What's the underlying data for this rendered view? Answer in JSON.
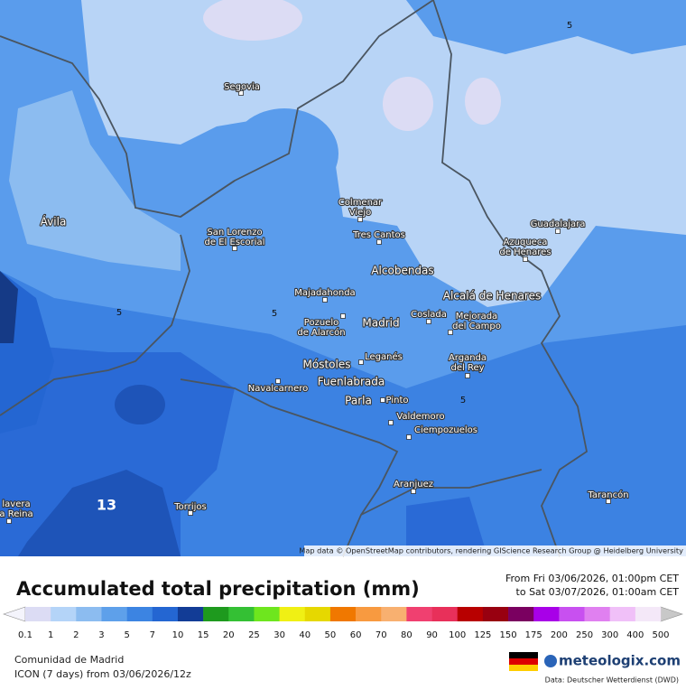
{
  "map": {
    "places": [
      [
        "Segovia"
      ],
      [
        "Ávila"
      ],
      [
        "Colmenar",
        "Viejo"
      ],
      [
        "San Lorenzo",
        "de El Escorial"
      ],
      [
        "Tres Cantos"
      ],
      [
        "Guadalajara"
      ],
      [
        "Azuqueca",
        "de Henares"
      ],
      [
        "Alcobendas"
      ],
      [
        "Majadahonda"
      ],
      [
        "Alcalá de Henares"
      ],
      [
        "Pozuelo",
        "de Alarcón"
      ],
      [
        "Madrid"
      ],
      [
        "Coslada"
      ],
      [
        "Mejorada",
        "del Campo"
      ],
      [
        "Leganés"
      ],
      [
        "Móstoles"
      ],
      [
        "Arganda",
        "del Rey"
      ],
      [
        "Navalcarnero"
      ],
      [
        "Fuenlabrada"
      ],
      [
        "Parla"
      ],
      [
        "Pinto"
      ],
      [
        "Valdemoro"
      ],
      [
        "Ciempozuelos"
      ],
      [
        "Aranjuez"
      ],
      [
        "Tarancón"
      ],
      [
        "Torrijos"
      ],
      [
        "lavera",
        "a Reina"
      ]
    ],
    "contour_labels": [
      5,
      5,
      5,
      5,
      13
    ],
    "attribution": "Map data © OpenStreetMap contributors, rendering GIScience Research Group @ Heidelberg University"
  },
  "legend": {
    "title": "Accumulated total precipitation (mm)",
    "period": [
      "From Fri 03/06/2026, 01:00pm CET",
      "to Sat 03/07/2026, 01:00am CET"
    ],
    "steps": [
      0.1,
      1,
      2,
      3,
      5,
      7,
      10,
      15,
      20,
      25,
      30,
      40,
      50,
      60,
      70,
      80,
      90,
      100,
      125,
      150,
      175,
      200,
      250,
      300,
      400,
      500
    ],
    "colors": [
      "#dcdcf4",
      "#b4d4f8",
      "#8cbcf0",
      "#5ea0ea",
      "#3c84e2",
      "#2466d2",
      "#123c96",
      "#1e9a1e",
      "#34c034",
      "#6ee61e",
      "#f0f014",
      "#e6d800",
      "#f07800",
      "#f89a40",
      "#f8b070",
      "#f04070",
      "#e8305a",
      "#b80000",
      "#980010",
      "#7a0060",
      "#a800e8",
      "#c850f0",
      "#e080f0",
      "#f0c0f8",
      "#f4e8f8"
    ]
  },
  "footer": {
    "region": "Comunidad de Madrid",
    "model": "ICON (7 days) from 03/06/2026/12z",
    "brand": "meteologix.com",
    "source": "Data: Deutscher Wetterdienst (DWD)"
  }
}
